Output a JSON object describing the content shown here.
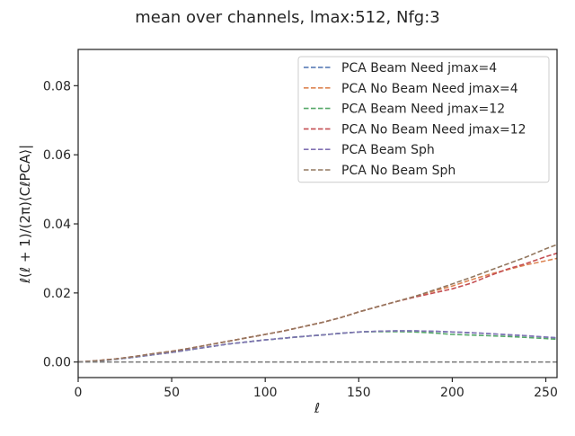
{
  "chart_data": {
    "type": "line",
    "title": "mean over channels, lmax:512, Nfg:3",
    "xlabel": "ℓ",
    "ylabel": "ℓ(ℓ + 1)/(2π)⟨CℓPCA⟩|",
    "xlim": [
      0,
      256
    ],
    "ylim": [
      -0.0045,
      0.0905
    ],
    "xticks": [
      0,
      50,
      100,
      150,
      200,
      250
    ],
    "xtick_labels": [
      "0",
      "50",
      "100",
      "150",
      "200",
      "250"
    ],
    "yticks": [
      0.0,
      0.02,
      0.04,
      0.06,
      0.08
    ],
    "ytick_labels": [
      "0.00",
      "0.02",
      "0.04",
      "0.06",
      "0.08"
    ],
    "grid": false,
    "legend_position": "top-right",
    "x": [
      0,
      10,
      20,
      30,
      40,
      50,
      60,
      70,
      80,
      90,
      100,
      110,
      120,
      130,
      140,
      150,
      160,
      170,
      180,
      190,
      200,
      210,
      220,
      230,
      240,
      250,
      256
    ],
    "series": [
      {
        "name": "PCA Beam Need jmax=4",
        "color": "#4c72b0",
        "values": [
          0.0,
          0.0003,
          0.0008,
          0.0014,
          0.0021,
          0.0028,
          0.0036,
          0.0044,
          0.0052,
          0.0058,
          0.0064,
          0.0069,
          0.0074,
          0.0078,
          0.0083,
          0.0087,
          0.0089,
          0.009,
          0.009,
          0.0089,
          0.0087,
          0.0085,
          0.0082,
          0.0079,
          0.0076,
          0.0072,
          0.007
        ]
      },
      {
        "name": "PCA No Beam Need jmax=4",
        "color": "#dd8452",
        "values": [
          0.0,
          0.0004,
          0.0009,
          0.0016,
          0.0024,
          0.0031,
          0.004,
          0.005,
          0.006,
          0.007,
          0.008,
          0.009,
          0.0102,
          0.0114,
          0.0128,
          0.0145,
          0.016,
          0.0175,
          0.019,
          0.0205,
          0.022,
          0.0238,
          0.0254,
          0.0268,
          0.0282,
          0.0293,
          0.03
        ]
      },
      {
        "name": "PCA Beam Need jmax=12",
        "color": "#55a868",
        "values": [
          0.0,
          0.0003,
          0.0008,
          0.0014,
          0.0021,
          0.0028,
          0.0036,
          0.0044,
          0.0052,
          0.0058,
          0.0064,
          0.0069,
          0.0074,
          0.0078,
          0.0083,
          0.0087,
          0.0088,
          0.0088,
          0.0087,
          0.0084,
          0.008,
          0.0078,
          0.0076,
          0.0074,
          0.0071,
          0.0068,
          0.0066
        ]
      },
      {
        "name": "PCA No Beam Need jmax=12",
        "color": "#c44e52",
        "values": [
          0.0,
          0.0004,
          0.0009,
          0.0016,
          0.0024,
          0.0031,
          0.004,
          0.005,
          0.006,
          0.007,
          0.008,
          0.009,
          0.0102,
          0.0114,
          0.0128,
          0.0145,
          0.016,
          0.0175,
          0.0188,
          0.02,
          0.0212,
          0.0228,
          0.025,
          0.027,
          0.0286,
          0.0305,
          0.0315
        ]
      },
      {
        "name": "PCA Beam Sph",
        "color": "#8172b3",
        "values": [
          0.0,
          0.0003,
          0.0008,
          0.0014,
          0.0021,
          0.0028,
          0.0036,
          0.0044,
          0.0052,
          0.0058,
          0.0064,
          0.0069,
          0.0074,
          0.0078,
          0.0083,
          0.0087,
          0.0089,
          0.009,
          0.009,
          0.0089,
          0.0087,
          0.0085,
          0.0082,
          0.0079,
          0.0076,
          0.0072,
          0.007
        ]
      },
      {
        "name": "PCA No Beam Sph",
        "color": "#937860",
        "values": [
          0.0,
          0.0004,
          0.0009,
          0.0016,
          0.0024,
          0.0031,
          0.004,
          0.005,
          0.006,
          0.007,
          0.008,
          0.009,
          0.0102,
          0.0114,
          0.0128,
          0.0145,
          0.016,
          0.0175,
          0.019,
          0.0208,
          0.0226,
          0.0245,
          0.0265,
          0.0285,
          0.0305,
          0.0328,
          0.034
        ]
      },
      {
        "name": "",
        "color": "#808080",
        "values": [
          0,
          0,
          0,
          0,
          0,
          0,
          0,
          0,
          0,
          0,
          0,
          0,
          0,
          0,
          0,
          0,
          0,
          0,
          0,
          0,
          0,
          0,
          0,
          0,
          0,
          0,
          0
        ]
      }
    ]
  }
}
